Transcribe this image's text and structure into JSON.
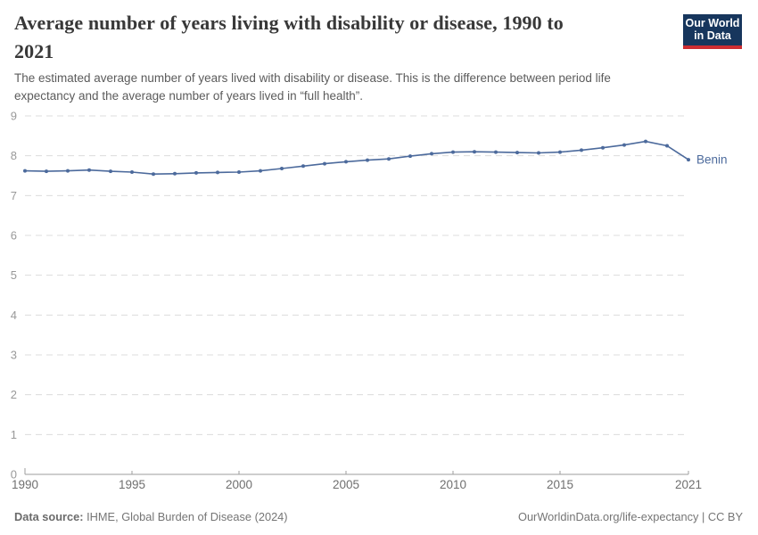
{
  "header": {
    "title": {
      "line1": "Average number of years living with disability or disease, 1990 to",
      "line2": "2021"
    },
    "subtitle": {
      "line1": "The estimated average number of years lived with disability or disease. This is the difference between period life",
      "line2": "expectancy and the average number of years lived in “full health”."
    },
    "logo": {
      "line1": "Our World",
      "line2": "in Data",
      "bg_color": "#17365D",
      "accent_color": "#CD2D32"
    }
  },
  "chart_data": {
    "type": "line",
    "title": "Average number of years living with disability or disease, 1990 to 2021",
    "xlabel": "",
    "ylabel": "",
    "xlim": [
      1990,
      2021
    ],
    "ylim": [
      0,
      9
    ],
    "x_ticks": [
      1990,
      1995,
      2000,
      2005,
      2010,
      2015,
      2021
    ],
    "y_ticks": [
      0,
      1,
      2,
      3,
      4,
      5,
      6,
      7,
      8,
      9
    ],
    "grid": "horizontal-dashed",
    "legend_position": "end-of-line-label",
    "x": [
      1990,
      1991,
      1992,
      1993,
      1994,
      1995,
      1996,
      1997,
      1998,
      1999,
      2000,
      2001,
      2002,
      2003,
      2004,
      2005,
      2006,
      2007,
      2008,
      2009,
      2010,
      2011,
      2012,
      2013,
      2014,
      2015,
      2016,
      2017,
      2018,
      2019,
      2020,
      2021
    ],
    "series": [
      {
        "name": "Benin",
        "color": "#4C6A9C",
        "values": [
          7.62,
          7.61,
          7.62,
          7.64,
          7.61,
          7.59,
          7.54,
          7.55,
          7.57,
          7.58,
          7.59,
          7.62,
          7.68,
          7.74,
          7.8,
          7.85,
          7.89,
          7.92,
          7.99,
          8.05,
          8.09,
          8.1,
          8.09,
          8.08,
          8.07,
          8.09,
          8.14,
          8.2,
          8.27,
          8.36,
          8.25,
          7.9
        ]
      }
    ]
  },
  "footer": {
    "source_label": "Data source:",
    "source_value": " IHME, Global Burden of Disease (2024)",
    "credit": "OurWorldinData.org/life-expectancy | CC BY"
  }
}
